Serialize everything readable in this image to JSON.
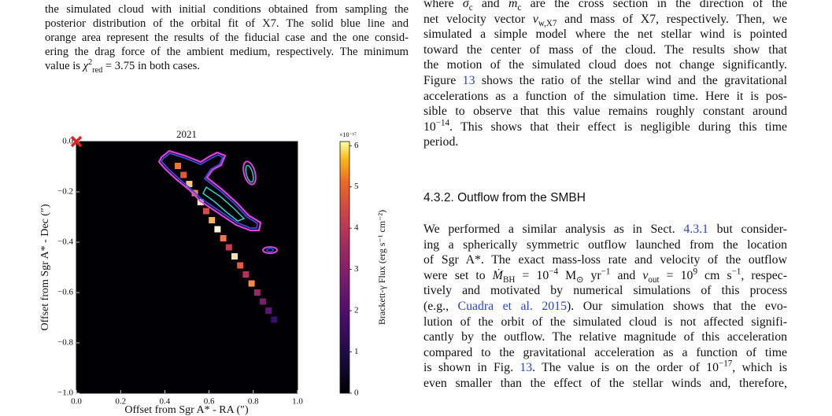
{
  "left_caption": {
    "lines": [
      "the simulated cloud with initial conditions obtained from sampling the",
      "posterior distribution of the orbital fit of X7. The solid blue line and",
      "orange area represent the results of the fiducial case and the one consid-",
      "ering the drag force of the ambient medium, respectively. The minimum",
      [
        "value is ",
        "χ",
        "2",
        "red",
        " = 3.75 in both cases."
      ]
    ]
  },
  "right_column": {
    "paragraph1": {
      "lines": [
        [
          "where ",
          "σ",
          "c",
          " and ",
          "ṁ",
          "c",
          " are the cross section in the direction of the"
        ],
        [
          "net velocity vector ",
          "v",
          "w,X7",
          " and mass of X7, respectively. Then, we"
        ],
        "simulated a simple model where the net stellar wind is pointed",
        "toward the center of mass of the cloud. The results show that",
        "the motion of the simulated cloud does not change significantly.",
        [
          "Figure ",
          "13",
          " shows the ratio of the stellar wind and the gravitational"
        ],
        "accelerations as a function of the simulation time. Here it is pos-",
        "sible to observe that this value remains roughly constant around",
        [
          "10",
          "−14",
          ". This shows that their effect is negligible during this time"
        ],
        "period."
      ]
    },
    "heading": "4.3.2. Outflow from the SMBH",
    "paragraph2": {
      "lines": [
        [
          "We performed a similar analysis as in Sect. ",
          "4.3.1",
          " but consider-"
        ],
        "ing a spherically symmetric outflow launched from the location",
        "of Sgr A*. The exact mass-loss rate and velocity of the outflow",
        [
          "were set to ",
          "Ṁ",
          "BH",
          " = 10",
          "−4",
          " M",
          "⊙",
          " yr",
          "−1",
          " and ",
          "v",
          "out",
          " = 10",
          "9",
          " cm s",
          "−1",
          ", respec-"
        ],
        "tively and motivated by numerical simulations of this process",
        [
          "(e.g., ",
          "Cuadra et al. 2015",
          "). Our simulation shows that the evo-"
        ],
        "lution of the orbit of the simulated cloud is not affected signifi-",
        "cantly by the outflow. The relative magnitude of this acceleration",
        "compared to the gravitational acceleration as a function of time",
        [
          "is shown in Fig. ",
          "13",
          ". The value is on the order of 10",
          "−17",
          ", which is"
        ],
        "even smaller than the effect of the stellar winds and, therefore,"
      ]
    }
  },
  "chart_data": {
    "type": "heatmap",
    "title": "2021",
    "x_label": "Offset from Sgr A* - RA (″)",
    "y_label": "Offset from Sgr A* - Dec (″)",
    "xlim": [
      0,
      1.0
    ],
    "ylim": [
      -1.0,
      0
    ],
    "xticks": [
      {
        "value": 0,
        "label": "0.0"
      },
      0.2,
      0.4,
      0.6,
      0.8,
      {
        "value": 1,
        "label": "1.0"
      }
    ],
    "yticks": [
      {
        "value": 0,
        "label": "0.0"
      },
      {
        "value": -0.2,
        "label": "−0.2"
      },
      {
        "value": -0.4,
        "label": "−0.4"
      },
      {
        "value": -0.6,
        "label": "−0.6"
      },
      {
        "value": -0.8,
        "label": "−0.8"
      },
      {
        "value": -1,
        "label": "−1.0"
      }
    ],
    "marker": {
      "x": 0,
      "y": 0,
      "color": "#e8221c"
    },
    "colorbar": {
      "label": "Brackett-γ Flux (erg s⁻¹ cm⁻²)",
      "scale_label": "×10⁻¹⁷",
      "lim": [
        0,
        6.1
      ],
      "ticks": [
        0,
        1,
        2,
        3,
        4,
        5,
        6
      ]
    }
  }
}
